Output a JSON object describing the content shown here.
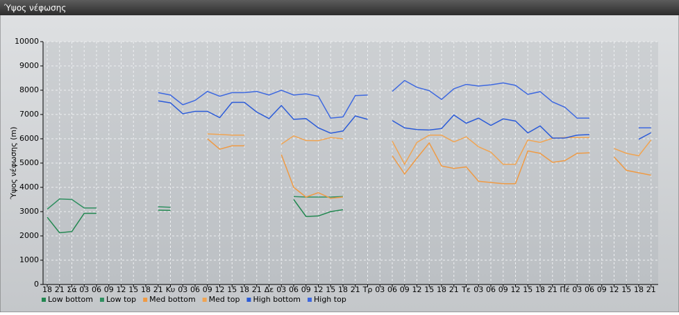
{
  "chart_data": {
    "type": "line",
    "title": "Ύψος νέφωσης",
    "ylabel": "Ύψος νέφωσης (m)",
    "categories": [
      "18",
      "21",
      "Σά",
      "03",
      "06",
      "09",
      "12",
      "15",
      "18",
      "21",
      "Κυ",
      "03",
      "06",
      "09",
      "12",
      "15",
      "18",
      "21",
      "Δε",
      "03",
      "06",
      "09",
      "12",
      "15",
      "18",
      "21",
      "Τρ",
      "03",
      "06",
      "09",
      "12",
      "15",
      "18",
      "21",
      "Τε",
      "03",
      "06",
      "09",
      "12",
      "15",
      "18",
      "21",
      "Πέ",
      "03",
      "06",
      "09",
      "12",
      "15",
      "18",
      "21"
    ],
    "ylim": [
      0,
      10000
    ],
    "yticks": [
      0,
      1000,
      2000,
      3000,
      4000,
      5000,
      6000,
      7000,
      8000,
      9000,
      10000
    ],
    "grid": true,
    "series": [
      {
        "name": "Low bottom",
        "color": "#21874f",
        "values": [
          2770,
          2130,
          2180,
          2930,
          2930,
          null,
          null,
          null,
          null,
          3060,
          3050,
          null,
          null,
          null,
          null,
          null,
          null,
          null,
          null,
          null,
          3500,
          2800,
          2820,
          3000,
          3080,
          null,
          null,
          null,
          null,
          null,
          null,
          null,
          null,
          null,
          null,
          null,
          null,
          null,
          null,
          null,
          null,
          null,
          null,
          null,
          null,
          null,
          null,
          null,
          null,
          null
        ]
      },
      {
        "name": "Low top",
        "color": "#2f8f60",
        "values": [
          3100,
          3520,
          3500,
          3150,
          3150,
          null,
          null,
          null,
          null,
          3200,
          3180,
          null,
          null,
          null,
          null,
          null,
          null,
          null,
          null,
          null,
          3620,
          3600,
          3600,
          3600,
          3620,
          null,
          null,
          null,
          null,
          null,
          null,
          null,
          null,
          null,
          null,
          null,
          null,
          null,
          null,
          null,
          null,
          null,
          null,
          null,
          null,
          null,
          null,
          null,
          null,
          null
        ]
      },
      {
        "name": "Med bottom",
        "color": "#ef9a44",
        "values": [
          null,
          null,
          null,
          null,
          null,
          null,
          null,
          null,
          null,
          null,
          null,
          null,
          null,
          6000,
          5570,
          5710,
          5710,
          null,
          null,
          5350,
          4000,
          3600,
          3780,
          3550,
          3600,
          null,
          null,
          null,
          5300,
          4550,
          5200,
          5830,
          4880,
          4780,
          4840,
          4250,
          4200,
          4150,
          4150,
          5500,
          5400,
          5030,
          5100,
          5400,
          5420,
          null,
          5250,
          4700,
          4600,
          4500
        ]
      },
      {
        "name": "Med top",
        "color": "#f0a452",
        "values": [
          null,
          null,
          null,
          null,
          null,
          null,
          null,
          null,
          null,
          null,
          null,
          null,
          null,
          6200,
          6180,
          6150,
          6150,
          null,
          null,
          5780,
          6120,
          5930,
          5920,
          6050,
          6000,
          null,
          null,
          null,
          5900,
          4950,
          5850,
          6150,
          6150,
          5870,
          6080,
          5670,
          5450,
          4950,
          4950,
          5950,
          5850,
          6020,
          6050,
          6050,
          6050,
          null,
          5600,
          5400,
          5300,
          5950
        ]
      },
      {
        "name": "High bottom",
        "color": "#2b5bd8",
        "values": [
          null,
          null,
          null,
          null,
          null,
          null,
          null,
          null,
          null,
          7560,
          7480,
          7030,
          7130,
          7130,
          6870,
          7500,
          7500,
          7100,
          6830,
          7370,
          6800,
          6830,
          6450,
          6230,
          6320,
          6940,
          6800,
          null,
          6750,
          6450,
          6380,
          6360,
          6420,
          6980,
          6640,
          6850,
          6550,
          6820,
          6730,
          6240,
          6530,
          6030,
          6030,
          6150,
          6170,
          null,
          null,
          null,
          5980,
          6250
        ]
      },
      {
        "name": "High top",
        "color": "#3d68e0",
        "values": [
          null,
          null,
          null,
          null,
          null,
          null,
          null,
          null,
          null,
          7900,
          7800,
          7400,
          7580,
          7950,
          7750,
          7900,
          7900,
          7950,
          7800,
          8000,
          7800,
          7850,
          7750,
          6850,
          6900,
          7780,
          7800,
          null,
          7950,
          8400,
          8120,
          7980,
          7620,
          8060,
          8240,
          8170,
          8220,
          8300,
          8200,
          7830,
          7940,
          7520,
          7300,
          6850,
          6850,
          null,
          null,
          null,
          6450,
          6450
        ]
      }
    ]
  }
}
